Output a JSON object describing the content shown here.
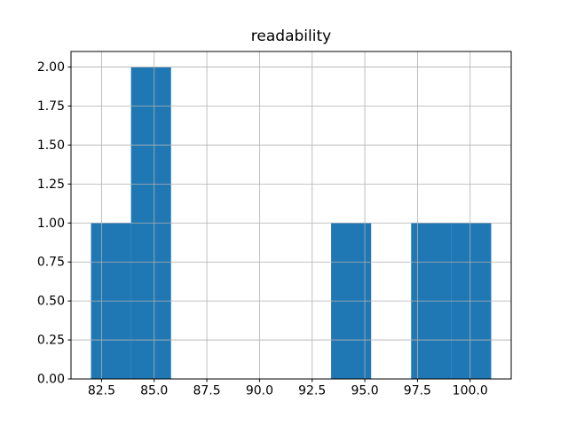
{
  "chart_data": {
    "type": "bar",
    "subtype": "histogram",
    "title": "readability",
    "xlabel": "",
    "ylabel": "",
    "bin_edges": [
      82.0,
      83.9,
      85.8,
      87.7,
      89.6,
      91.5,
      93.4,
      95.3,
      97.2,
      99.1,
      101.0
    ],
    "counts": [
      1,
      2,
      0,
      0,
      0,
      0,
      1,
      0,
      1,
      1
    ],
    "xticks": [
      82.5,
      85.0,
      87.5,
      90.0,
      92.5,
      95.0,
      97.5,
      100.0
    ],
    "xtick_labels": [
      "82.5",
      "85.0",
      "87.5",
      "90.0",
      "92.5",
      "95.0",
      "97.5",
      "100.0"
    ],
    "yticks": [
      0.0,
      0.25,
      0.5,
      0.75,
      1.0,
      1.25,
      1.5,
      1.75,
      2.0
    ],
    "ytick_labels": [
      "0.00",
      "0.25",
      "0.50",
      "0.75",
      "1.00",
      "1.25",
      "1.50",
      "1.75",
      "2.00"
    ],
    "xlim": [
      81.05,
      101.95
    ],
    "ylim": [
      0,
      2.1
    ],
    "grid": true,
    "grid_above_bars": true,
    "legend": null,
    "colors": {
      "bar": "#1f77b4",
      "grid": "#b0b0b0",
      "axis": "#000000",
      "text": "#000000",
      "background": "#ffffff"
    }
  }
}
